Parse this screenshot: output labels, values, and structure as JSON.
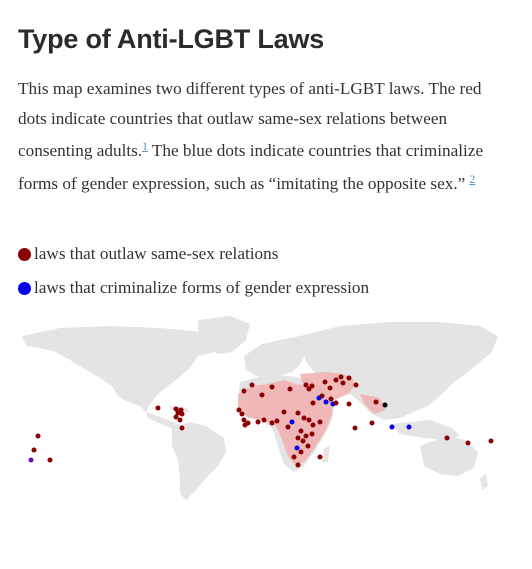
{
  "title": "Type of Anti-LGBT Laws",
  "intro": {
    "part1": "This map examines two different types of anti-LGBT laws. The red dots indicate countries that outlaw same-sex relations between consenting adults.",
    "ref1": "1",
    "part2": " The blue dots indicate countries that criminalize forms of gender expression, such as “imitating the opposite sex.” ",
    "ref2": "2"
  },
  "legend": [
    {
      "label": "laws that outlaw same-sex relations",
      "color": "#8b0000",
      "icon": "red-dot-icon"
    },
    {
      "label": "laws that criminalize forms of gender expression",
      "color": "#0000ee",
      "icon": "blue-dot-icon"
    }
  ],
  "colors": {
    "land": "#e4e4e4",
    "red_region": "#f1b0b0",
    "red_dot": "#8b0000",
    "blue_dot": "#0000ee",
    "both_dot": "#000000"
  }
}
